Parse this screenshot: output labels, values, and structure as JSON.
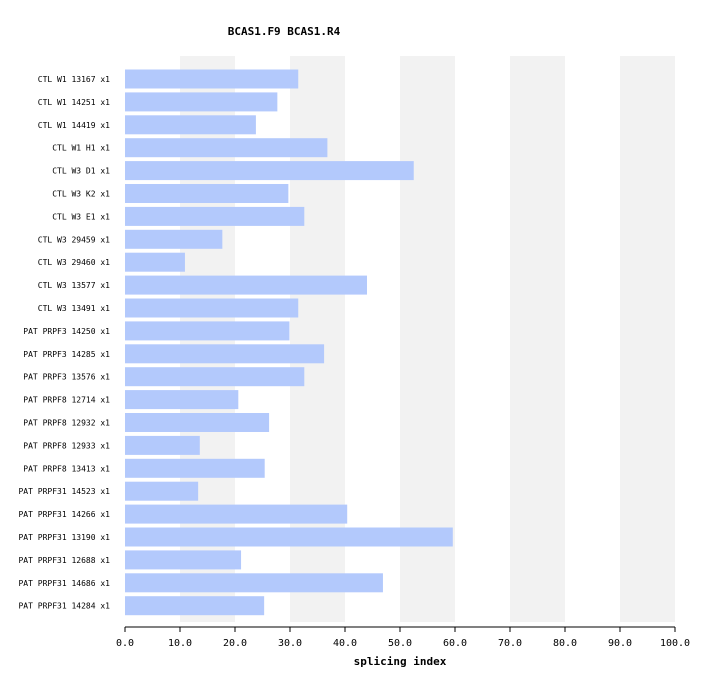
{
  "chart_data": {
    "type": "bar",
    "orientation": "horizontal",
    "title": "BCAS1.F9  BCAS1.R4",
    "xlabel": "splicing index",
    "ylabel": "",
    "xlim": [
      0,
      100
    ],
    "xticks": [
      "0.0",
      "10.0",
      "20.0",
      "30.0",
      "40.0",
      "50.0",
      "60.0",
      "70.0",
      "80.0",
      "90.0",
      "100.0"
    ],
    "grid": "alternating vertical bands",
    "bar_color": "#b3c9fc",
    "band_color": "#f2f2f2",
    "categories": [
      "CTL W1 13167 x1",
      "CTL W1 14251 x1",
      "CTL W1 14419 x1",
      "CTL W1 H1 x1",
      "CTL W3 D1 x1",
      "CTL W3 K2 x1",
      "CTL W3 E1 x1",
      "CTL W3 29459 x1",
      "CTL W3 29460 x1",
      "CTL W3 13577 x1",
      "CTL W3 13491 x1",
      "PAT PRPF3 14250 x1",
      "PAT PRPF3 14285 x1",
      "PAT PRPF3 13576 x1",
      "PAT PRPF8 12714 x1",
      "PAT PRPF8 12932 x1",
      "PAT PRPF8 12933 x1",
      "PAT PRPF8 13413 x1",
      "PAT PRPF31 14523 x1",
      "PAT PRPF31 14266 x1",
      "PAT PRPF31 13190 x1",
      "PAT PRPF31 12688 x1",
      "PAT PRPF31 14686 x1",
      "PAT PRPF31 14284 x1"
    ],
    "values": [
      31.5,
      27.7,
      23.8,
      36.8,
      52.5,
      29.7,
      32.6,
      17.7,
      10.9,
      44.0,
      31.5,
      29.9,
      36.2,
      32.6,
      20.6,
      26.2,
      13.6,
      25.4,
      13.3,
      40.4,
      59.6,
      21.1,
      46.9,
      25.3
    ]
  }
}
